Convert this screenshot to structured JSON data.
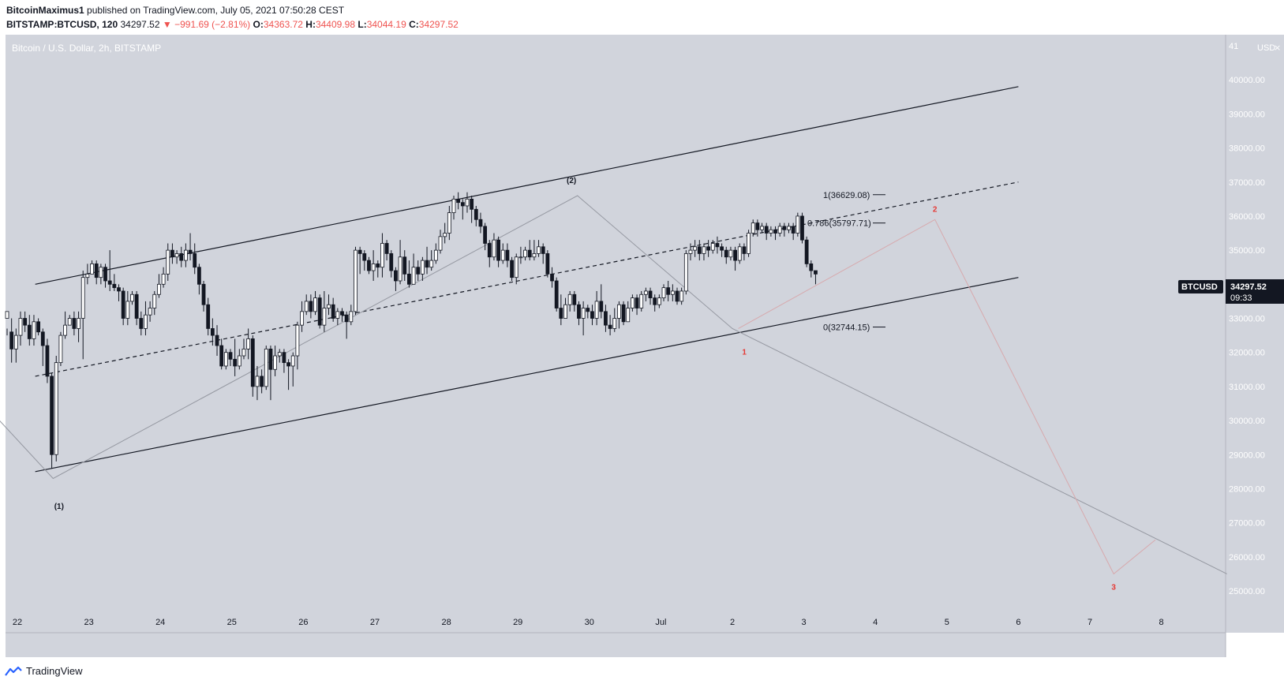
{
  "header": {
    "author": "BitcoinMaximus1",
    "published_text": "published on TradingView.com, July 05, 2021 07:50:28 CEST",
    "symbol": "BITSTAMP:BTCUSD, 120",
    "last": "34297.52",
    "change": "−991.69 (−2.81%)",
    "o_label": "O:",
    "o_value": "34363.72",
    "h_label": "H:",
    "h_value": "34409.98",
    "l_label": "L:",
    "l_value": "34044.19",
    "c_label": "C:",
    "c_value": "34297.52"
  },
  "footer": {
    "brand": "TradingView"
  },
  "colors": {
    "background": "#d1d4dc",
    "up": "#ffffff",
    "down": "#131722",
    "wave_label": "#e53935",
    "accent_label_bg": "#131722"
  },
  "chart_data": {
    "type": "candlestick",
    "title": "Bitcoin / U.S. Dollar, 2h, BITSTAMP",
    "currency_label": "USD",
    "y_ticks": [
      "41000.00",
      "40000.00",
      "39000.00",
      "38000.00",
      "37000.00",
      "36000.00",
      "35000.00",
      "34000.00",
      "33000.00",
      "32000.00",
      "31000.00",
      "30000.00",
      "29000.00",
      "28000.00",
      "27000.00",
      "26000.00",
      "25000.00"
    ],
    "x_ticks": [
      "22",
      "23",
      "24",
      "25",
      "26",
      "27",
      "28",
      "29",
      "30",
      "Jul",
      "2",
      "3",
      "4",
      "5",
      "6",
      "7",
      "8"
    ],
    "ylim": [
      24500,
      41200
    ],
    "price_label": {
      "symbol": "BTCUSD",
      "price": "34297.52",
      "countdown": "09:33"
    },
    "candles": [
      [
        33000,
        33200,
        32700,
        32500,
        1
      ],
      [
        32600,
        32100,
        33000,
        31700,
        -1
      ],
      [
        32100,
        32500,
        32700,
        31700,
        1
      ],
      [
        32500,
        33000,
        33200,
        32200,
        1
      ],
      [
        33000,
        32800,
        33200,
        32600,
        -1
      ],
      [
        32800,
        32400,
        33100,
        32200,
        -1
      ],
      [
        32400,
        32900,
        33100,
        32200,
        1
      ],
      [
        32900,
        32600,
        33000,
        32500,
        -1
      ],
      [
        32600,
        32200,
        32700,
        31600,
        -1
      ],
      [
        32200,
        31300,
        32400,
        31100,
        -1
      ],
      [
        31300,
        29000,
        31400,
        28600,
        -1
      ],
      [
        29000,
        31700,
        31900,
        28800,
        1
      ],
      [
        31700,
        32500,
        32600,
        31600,
        1
      ],
      [
        32500,
        32800,
        33200,
        32400,
        1
      ],
      [
        32800,
        33000,
        33100,
        32800,
        -1
      ],
      [
        33000,
        32700,
        33200,
        32500,
        -1
      ],
      [
        32700,
        33000,
        33200,
        32300,
        1
      ],
      [
        33000,
        34200,
        34400,
        31800,
        1
      ],
      [
        34200,
        34300,
        34600,
        34000,
        1
      ],
      [
        34300,
        34600,
        34700,
        34300,
        1
      ],
      [
        34600,
        34200,
        34700,
        34000,
        -1
      ],
      [
        34200,
        34500,
        34600,
        34000,
        1
      ],
      [
        34500,
        34100,
        34600,
        33900,
        -1
      ],
      [
        34100,
        34000,
        35000,
        33800,
        -1
      ],
      [
        34000,
        33900,
        34300,
        33800,
        -1
      ],
      [
        33900,
        33800,
        34000,
        33500,
        -1
      ],
      [
        33800,
        33000,
        33900,
        32800,
        -1
      ],
      [
        33000,
        33500,
        33800,
        32800,
        1
      ],
      [
        33500,
        33700,
        33800,
        33400,
        1
      ],
      [
        33700,
        33000,
        33800,
        32800,
        -1
      ],
      [
        33000,
        32700,
        33200,
        32500,
        -1
      ],
      [
        32700,
        33100,
        33500,
        32500,
        1
      ],
      [
        33100,
        33300,
        33500,
        32900,
        1
      ],
      [
        33300,
        33700,
        33800,
        33100,
        1
      ],
      [
        33700,
        34000,
        34300,
        33600,
        1
      ],
      [
        34000,
        34300,
        34500,
        33900,
        1
      ],
      [
        34300,
        35000,
        35200,
        34100,
        1
      ],
      [
        35000,
        34800,
        35200,
        34600,
        -1
      ],
      [
        34800,
        34900,
        35000,
        34600,
        1
      ],
      [
        34900,
        34700,
        35100,
        34500,
        -1
      ],
      [
        34700,
        35000,
        35200,
        34500,
        1
      ],
      [
        35000,
        34900,
        35500,
        34700,
        -1
      ],
      [
        34900,
        34500,
        35200,
        34300,
        -1
      ],
      [
        34500,
        34000,
        34600,
        33700,
        -1
      ],
      [
        34000,
        33400,
        34100,
        33200,
        -1
      ],
      [
        33400,
        32700,
        33600,
        32500,
        -1
      ],
      [
        32700,
        32500,
        33000,
        32200,
        -1
      ],
      [
        32500,
        32200,
        32800,
        31900,
        -1
      ],
      [
        32200,
        31600,
        32400,
        31500,
        -1
      ],
      [
        31600,
        32000,
        32100,
        31500,
        1
      ],
      [
        32000,
        31800,
        32100,
        31600,
        -1
      ],
      [
        31800,
        31600,
        32400,
        31300,
        -1
      ],
      [
        31600,
        31900,
        32100,
        31500,
        1
      ],
      [
        31900,
        32100,
        32400,
        31800,
        1
      ],
      [
        32100,
        32400,
        32700,
        31800,
        1
      ],
      [
        32400,
        31000,
        32500,
        30700,
        -1
      ],
      [
        31000,
        31300,
        31600,
        30600,
        1
      ],
      [
        31300,
        31000,
        31500,
        30800,
        -1
      ],
      [
        31000,
        32100,
        32200,
        30900,
        1
      ],
      [
        32100,
        31500,
        32200,
        30600,
        -1
      ],
      [
        31500,
        31900,
        32200,
        31300,
        1
      ],
      [
        31900,
        32000,
        32100,
        31700,
        1
      ],
      [
        32000,
        31700,
        32100,
        31400,
        -1
      ],
      [
        31700,
        31600,
        31800,
        30900,
        -1
      ],
      [
        31600,
        31900,
        32000,
        31000,
        1
      ],
      [
        31900,
        32800,
        32900,
        31500,
        1
      ],
      [
        32800,
        33200,
        33500,
        32600,
        1
      ],
      [
        33200,
        33500,
        33700,
        33100,
        1
      ],
      [
        33500,
        33200,
        33700,
        33000,
        -1
      ],
      [
        33200,
        33600,
        33800,
        33100,
        1
      ],
      [
        33600,
        32800,
        33700,
        32700,
        -1
      ],
      [
        32800,
        33300,
        33800,
        32600,
        1
      ],
      [
        33300,
        33400,
        33700,
        33100,
        1
      ],
      [
        33400,
        33000,
        33600,
        32900,
        -1
      ],
      [
        33000,
        33200,
        33300,
        32800,
        1
      ],
      [
        33200,
        33100,
        33300,
        32900,
        -1
      ],
      [
        33100,
        32900,
        33200,
        32400,
        -1
      ],
      [
        32900,
        33200,
        33400,
        32800,
        1
      ],
      [
        33200,
        35000,
        35100,
        33100,
        1
      ],
      [
        35000,
        34900,
        35100,
        34300,
        -1
      ],
      [
        34900,
        34700,
        35000,
        34400,
        -1
      ],
      [
        34700,
        34400,
        34800,
        34300,
        -1
      ],
      [
        34400,
        34600,
        35000,
        34100,
        1
      ],
      [
        34600,
        34500,
        34700,
        34200,
        -1
      ],
      [
        34500,
        35200,
        35500,
        34200,
        1
      ],
      [
        35200,
        34900,
        35300,
        34700,
        -1
      ],
      [
        34900,
        34400,
        35000,
        34200,
        -1
      ],
      [
        34400,
        34100,
        34500,
        33800,
        -1
      ],
      [
        34100,
        34800,
        35300,
        34000,
        1
      ],
      [
        34800,
        34300,
        35000,
        34100,
        -1
      ],
      [
        34300,
        34000,
        34700,
        33900,
        -1
      ],
      [
        34000,
        34500,
        34900,
        34000,
        1
      ],
      [
        34500,
        34300,
        34700,
        34100,
        -1
      ],
      [
        34300,
        34700,
        34800,
        34100,
        1
      ],
      [
        34700,
        34500,
        35100,
        34300,
        -1
      ],
      [
        34500,
        34700,
        35000,
        34400,
        1
      ],
      [
        34700,
        35000,
        35200,
        34600,
        1
      ],
      [
        35000,
        35400,
        35600,
        34900,
        1
      ],
      [
        35400,
        35500,
        35800,
        35200,
        1
      ],
      [
        35500,
        36100,
        36300,
        35300,
        1
      ],
      [
        36100,
        36500,
        36600,
        35900,
        1
      ],
      [
        36500,
        36400,
        36700,
        36200,
        -1
      ],
      [
        36400,
        36300,
        36500,
        35900,
        -1
      ],
      [
        36300,
        36500,
        36700,
        36100,
        1
      ],
      [
        36500,
        36200,
        36600,
        35800,
        -1
      ],
      [
        36200,
        35900,
        36300,
        35700,
        -1
      ],
      [
        35900,
        35700,
        36100,
        35500,
        -1
      ],
      [
        35700,
        35200,
        35800,
        35000,
        -1
      ],
      [
        35200,
        34800,
        35300,
        34500,
        -1
      ],
      [
        34800,
        35300,
        35500,
        34700,
        1
      ],
      [
        35300,
        34700,
        35400,
        34500,
        -1
      ],
      [
        34700,
        35000,
        35200,
        34600,
        1
      ],
      [
        35000,
        34700,
        35200,
        34500,
        -1
      ],
      [
        34700,
        34200,
        34800,
        34100,
        -1
      ],
      [
        34200,
        34800,
        34900,
        34000,
        1
      ],
      [
        34800,
        34800,
        35100,
        34600,
        -1
      ],
      [
        34800,
        35000,
        35100,
        34700,
        1
      ],
      [
        35000,
        34800,
        35300,
        34700,
        -1
      ],
      [
        34800,
        34900,
        35300,
        34700,
        1
      ],
      [
        34900,
        35100,
        35300,
        34800,
        1
      ],
      [
        35100,
        34900,
        35200,
        34600,
        -1
      ],
      [
        34900,
        34300,
        35000,
        34200,
        -1
      ],
      [
        34300,
        34100,
        34500,
        33900,
        -1
      ],
      [
        34100,
        33300,
        34200,
        33200,
        -1
      ],
      [
        33300,
        33000,
        33700,
        32800,
        -1
      ],
      [
        33000,
        33400,
        33600,
        33100,
        1
      ],
      [
        33400,
        33700,
        33800,
        33200,
        1
      ],
      [
        33700,
        33400,
        33800,
        33200,
        -1
      ],
      [
        33400,
        33000,
        33500,
        32800,
        -1
      ],
      [
        33000,
        33300,
        33500,
        32500,
        1
      ],
      [
        33300,
        33200,
        33400,
        33000,
        -1
      ],
      [
        33200,
        33000,
        33400,
        32800,
        -1
      ],
      [
        33000,
        33500,
        33800,
        32800,
        1
      ],
      [
        33500,
        33200,
        34000,
        33000,
        -1
      ],
      [
        33200,
        32800,
        33400,
        32600,
        -1
      ],
      [
        32800,
        32700,
        33100,
        32500,
        -1
      ],
      [
        32700,
        33000,
        33300,
        32600,
        1
      ],
      [
        33000,
        33400,
        33500,
        32700,
        1
      ],
      [
        33400,
        32900,
        33500,
        32800,
        -1
      ],
      [
        32900,
        33300,
        33500,
        32900,
        1
      ],
      [
        33300,
        33600,
        33700,
        33200,
        1
      ],
      [
        33600,
        33300,
        33700,
        33100,
        -1
      ],
      [
        33300,
        33700,
        33800,
        33200,
        1
      ],
      [
        33700,
        33800,
        33900,
        33500,
        1
      ],
      [
        33800,
        33600,
        33900,
        33400,
        -1
      ],
      [
        33600,
        33400,
        33700,
        33200,
        -1
      ],
      [
        33400,
        33600,
        33700,
        33300,
        1
      ],
      [
        33600,
        33900,
        34000,
        33500,
        1
      ],
      [
        33900,
        33700,
        34100,
        33500,
        -1
      ],
      [
        33700,
        33800,
        34000,
        33500,
        1
      ],
      [
        33800,
        33500,
        33900,
        33400,
        -1
      ],
      [
        33500,
        33800,
        33900,
        33400,
        1
      ],
      [
        33800,
        34900,
        35000,
        33700,
        1
      ],
      [
        34900,
        35000,
        35200,
        34700,
        1
      ],
      [
        35000,
        35100,
        35300,
        34800,
        1
      ],
      [
        35100,
        34900,
        35300,
        34700,
        -1
      ],
      [
        34900,
        35100,
        35200,
        34700,
        1
      ],
      [
        35100,
        35000,
        35300,
        34800,
        -1
      ],
      [
        35000,
        35200,
        35300,
        34900,
        1
      ],
      [
        35200,
        35100,
        35400,
        34900,
        -1
      ],
      [
        35100,
        35000,
        35200,
        34800,
        -1
      ],
      [
        35000,
        34800,
        35100,
        34600,
        -1
      ],
      [
        34800,
        35000,
        35100,
        34700,
        1
      ],
      [
        35000,
        34700,
        35100,
        34400,
        -1
      ],
      [
        34700,
        35100,
        35200,
        34600,
        1
      ],
      [
        35100,
        34900,
        35200,
        34700,
        -1
      ],
      [
        34900,
        35500,
        35600,
        34800,
        1
      ],
      [
        35500,
        35800,
        35900,
        35400,
        1
      ],
      [
        35800,
        35600,
        35900,
        35400,
        -1
      ],
      [
        35600,
        35700,
        35800,
        35500,
        1
      ],
      [
        35700,
        35500,
        35800,
        35300,
        -1
      ],
      [
        35500,
        35600,
        35700,
        35400,
        1
      ],
      [
        35600,
        35500,
        35700,
        35300,
        -1
      ],
      [
        35500,
        35700,
        35800,
        35400,
        1
      ],
      [
        35700,
        35600,
        35800,
        35400,
        -1
      ],
      [
        35600,
        35700,
        35800,
        35500,
        1
      ],
      [
        35700,
        35500,
        35800,
        35300,
        -1
      ],
      [
        35500,
        36000,
        36100,
        35400,
        1
      ],
      [
        36000,
        35300,
        36100,
        35200,
        -1
      ],
      [
        35300,
        34600,
        35400,
        34500,
        -1
      ],
      [
        34600,
        34400,
        34700,
        34200,
        -1
      ],
      [
        34400,
        34300,
        34400,
        34000,
        -1
      ]
    ],
    "channel": {
      "upper": [
        [
          "2021-06-22T06:00",
          34000
        ],
        [
          "2021-07-06T00:00",
          39800
        ]
      ],
      "middle": [
        [
          "2021-06-22T06:00",
          31300
        ],
        [
          "2021-07-06T00:00",
          37000
        ]
      ],
      "lower": [
        [
          "2021-06-22T06:00",
          28500
        ],
        [
          "2021-07-06T00:00",
          34200
        ]
      ]
    },
    "fib": [
      {
        "label": "1(36629.08)",
        "value": 36629.08
      },
      {
        "label": "0.786(35797.71)",
        "value": 35797.71
      },
      {
        "label": "0(32744.15)",
        "value": 32744.15
      }
    ],
    "wave_labels": [
      {
        "text": "(1)",
        "color": "dark"
      },
      {
        "text": "(2)",
        "color": "dark"
      },
      {
        "text": "1",
        "color": "red"
      },
      {
        "text": "2",
        "color": "red"
      },
      {
        "text": "3",
        "color": "red"
      }
    ],
    "count_path_grey": [
      [
        "2021-06-21T18:00",
        30000
      ],
      [
        "2021-06-22T12:00",
        28300
      ],
      [
        "2021-06-29T20:00",
        36600
      ],
      [
        "2021-07-02T00:00",
        32700
      ],
      [
        "2021-07-08T22:00",
        25500
      ]
    ],
    "count_path_red": [
      [
        "2021-07-02T02:00",
        32700
      ],
      [
        "2021-07-04T20:00",
        35900
      ],
      [
        "2021-07-07T08:00",
        25500
      ],
      [
        "2021-07-07T22:00",
        26500
      ]
    ]
  }
}
